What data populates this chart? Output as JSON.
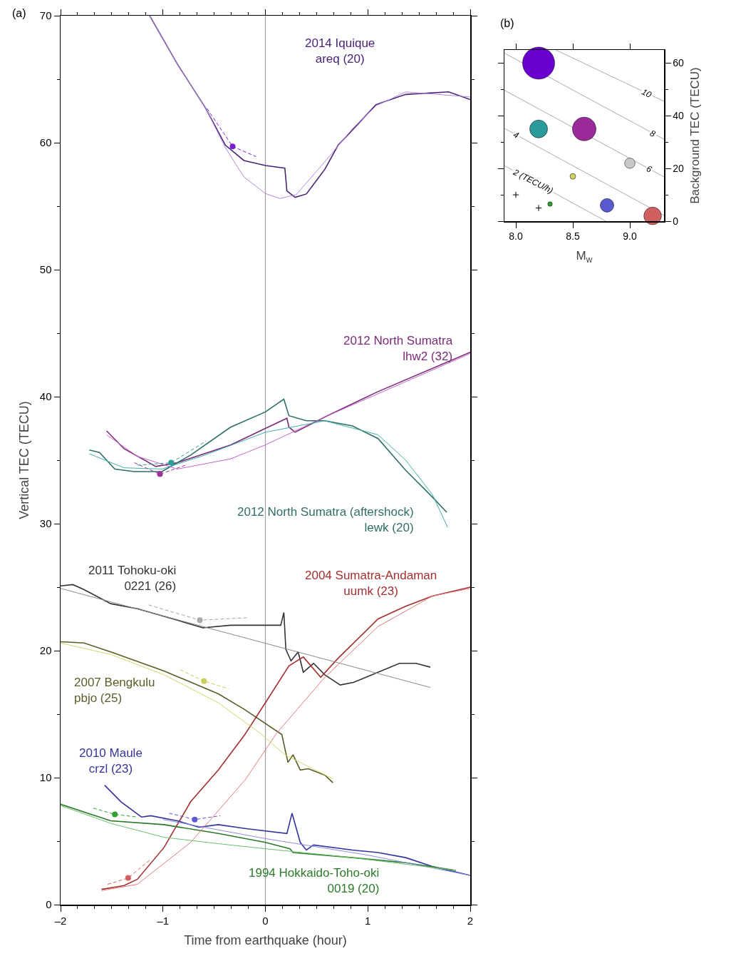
{
  "chart_data": [
    {
      "type": "line",
      "title": "(a)",
      "xlabel": "Time from earthquake (hour)",
      "ylabel": "Vertical TEC (TECU)",
      "xlim": [
        -2,
        2
      ],
      "ylim": [
        0,
        70
      ],
      "xticks": [
        {
          "value": -2,
          "label": "–2"
        },
        {
          "value": -1,
          "label": "–1"
        },
        0,
        1,
        2
      ],
      "yticks": [
        0,
        10,
        20,
        30,
        40,
        50,
        60,
        70
      ],
      "grid": false,
      "ref_lines": [
        {
          "axis": "x",
          "value": 0,
          "color": "#a0a0a0"
        }
      ],
      "series": [
        {
          "name": "2014 Iquique\nareq (20)",
          "color": "#4a2377",
          "x": [
            -1.13,
            -0.86,
            -0.59,
            -0.39,
            -0.21,
            0,
            0.19,
            0.21,
            0.29,
            0.4,
            0.58,
            0.71,
            0.85,
            1.08,
            1.37,
            1.79,
            2.0
          ],
          "values": [
            70,
            66.2,
            62.8,
            59.8,
            58.6,
            58.2,
            58.0,
            56.2,
            55.7,
            55.96,
            57.9,
            59.8,
            61.0,
            63.0,
            63.8,
            64.0,
            63.4
          ]
        },
        {
          "name": "2012 North Sumatra\nlhw2 (32)",
          "color": "#7a2a78",
          "x": [
            -1.55,
            -1.38,
            -1.07,
            -0.86,
            -0.34,
            0,
            0.21,
            0.23,
            0.29,
            0.58,
            1.1,
            2.0
          ],
          "values": [
            37.3,
            35.9,
            34.5,
            34.8,
            36.2,
            37.5,
            38.3,
            37.6,
            37.2,
            38.4,
            40.4,
            43.5
          ]
        },
        {
          "name": "2012 North Sumatra (aftershock)\nlewk (20)",
          "color": "#2f6e68",
          "x": [
            -1.72,
            -1.62,
            -1.47,
            -1.28,
            -1.01,
            -0.73,
            -0.34,
            0,
            0.18,
            0.23,
            0.4,
            0.58,
            0.85,
            1.1,
            1.37,
            1.63,
            1.77
          ],
          "values": [
            35.8,
            35.6,
            34.3,
            34.1,
            34.1,
            35.4,
            37.6,
            38.8,
            39.8,
            38.5,
            38.1,
            38.1,
            37.7,
            36.7,
            34.2,
            32.1,
            30.9
          ]
        },
        {
          "name": "2011 Tohoku-oki\n0221 (26)",
          "color": "#333333",
          "x": [
            -2.0,
            -1.88,
            -1.77,
            -1.51,
            -1.25,
            -0.86,
            -0.61,
            -0.34,
            0.15,
            0.18,
            0.2,
            0.25,
            0.32,
            0.37,
            0.47,
            0.58,
            0.73,
            0.86,
            1.1,
            1.31,
            1.47,
            1.61
          ],
          "values": [
            25.1,
            25.2,
            24.8,
            23.7,
            23.3,
            22.4,
            21.8,
            22.0,
            22.0,
            23.0,
            20.1,
            19.2,
            19.9,
            18.3,
            19.0,
            18.1,
            17.3,
            17.5,
            18.3,
            19.0,
            19.0,
            18.7
          ]
        },
        {
          "name": "2007 Bengkulu\npbjo (25)",
          "color": "#5c5c28",
          "x": [
            -2.0,
            -1.77,
            -1.51,
            -0.99,
            -0.46,
            -0.21,
            0.16,
            0.22,
            0.27,
            0.34,
            0.42,
            0.58,
            0.66
          ],
          "values": [
            20.7,
            20.6,
            19.9,
            18.4,
            16.6,
            15.4,
            13.4,
            11.2,
            11.8,
            10.6,
            10.7,
            10.2,
            9.6
          ]
        },
        {
          "name": "2004 Sumatra-Andaman\nuumk (23)",
          "color": "#a32f2f",
          "x": [
            -1.6,
            -1.38,
            -1.25,
            -0.99,
            -0.73,
            -0.46,
            -0.2,
            0,
            0.23,
            0.37,
            0.54,
            0.71,
            1.1,
            1.37,
            1.63,
            2.0
          ],
          "values": [
            1.2,
            1.5,
            2.0,
            4.5,
            8.1,
            10.6,
            13.4,
            15.9,
            18.8,
            19.5,
            17.9,
            19.4,
            22.5,
            23.5,
            24.3,
            25.0
          ]
        },
        {
          "name": "2010 Maule\ncrzl (23)",
          "color": "#34349c",
          "x": [
            -1.57,
            -1.41,
            -1.21,
            -1.12,
            -0.86,
            -0.65,
            -0.46,
            -0.2,
            0.21,
            0.26,
            0.34,
            0.4,
            0.47,
            0.85,
            1.1,
            1.37,
            1.63,
            2.0
          ],
          "values": [
            9.4,
            8.1,
            6.9,
            7.0,
            6.6,
            6.1,
            6.3,
            6.0,
            5.6,
            7.2,
            4.9,
            4.3,
            4.7,
            4.3,
            4.1,
            3.7,
            3.0,
            2.3
          ]
        },
        {
          "name": "1994 Hokkaido-Toho-oki\n0019 (20)",
          "color": "#2a7a2a",
          "x": [
            -2.0,
            -1.51,
            -0.99,
            -0.46,
            0,
            0.24,
            0.27,
            0.85,
            1.37,
            1.86
          ],
          "values": [
            7.9,
            6.6,
            6.3,
            5.6,
            4.9,
            4.4,
            4.1,
            3.7,
            3.3,
            2.7
          ]
        },
        {
          "color": "#b48ad8",
          "x": [
            -1.13,
            -0.86,
            -0.59,
            -0.39,
            -0.21,
            0,
            0.14,
            0.3,
            0.58,
            0.85,
            1.08,
            1.37,
            2.0
          ],
          "values": [
            70,
            66.2,
            62.8,
            59.6,
            57.3,
            56.0,
            55.6,
            55.9,
            58.5,
            61.1,
            62.9,
            64.0,
            63.6
          ]
        },
        {
          "color": "#c266c8",
          "x": [
            -1.55,
            -1.25,
            -0.86,
            -0.34,
            0,
            0.58,
            2.0
          ],
          "values": [
            37.0,
            35.3,
            34.3,
            35.1,
            36.2,
            38.4,
            43.4
          ]
        },
        {
          "color": "#3fb0aa",
          "x": [
            -1.72,
            -1.38,
            -1.01,
            -0.59,
            0,
            0.58,
            1.1,
            1.37,
            1.63,
            1.78
          ],
          "values": [
            35.5,
            34.4,
            34.3,
            35.4,
            37.2,
            38.1,
            37.0,
            35.0,
            32.3,
            29.7
          ]
        },
        {
          "color": "#8a8a8a",
          "x": [
            -2.0,
            1.61
          ],
          "values": [
            24.9,
            17.1
          ]
        },
        {
          "color": "#d4d46a",
          "x": [
            -2.0,
            -1.51,
            -0.99,
            -0.46,
            -0.05,
            0.19,
            0.66
          ],
          "values": [
            20.6,
            19.7,
            18.1,
            15.9,
            13.5,
            11.8,
            9.9
          ]
        },
        {
          "color": "#e07a7a",
          "x": [
            -1.6,
            -1.25,
            -0.73,
            -0.2,
            0.11,
            0.58,
            1.1,
            1.63,
            2.0
          ],
          "values": [
            1.1,
            1.6,
            4.9,
            9.8,
            13.5,
            17.9,
            21.9,
            24.3,
            24.9
          ]
        },
        {
          "color": "#8c8ce0",
          "x": [
            -1.0,
            0,
            1.0,
            2.0
          ],
          "values": [
            6.7,
            5.2,
            3.9,
            2.3
          ]
        },
        {
          "color": "#6cc06c",
          "x": [
            -2.0,
            -1.51,
            -0.99,
            -0.46,
            0,
            0.85,
            1.86
          ],
          "values": [
            7.8,
            6.4,
            5.3,
            4.8,
            4.4,
            3.7,
            2.7
          ]
        },
        {
          "color": "#7b1fd0",
          "line_style": "dashed",
          "x": [
            -0.57,
            -0.32,
            -0.09
          ],
          "values": [
            62.7,
            59.7,
            58.9
          ]
        },
        {
          "color": "#a0309a",
          "line_style": "dashed",
          "x": [
            -1.28,
            -1.03,
            -0.78
          ],
          "values": [
            34.8,
            33.9,
            34.6
          ]
        },
        {
          "color": "#2a9e98",
          "line_style": "dashed",
          "x": [
            -1.25,
            -0.92,
            -0.58
          ],
          "values": [
            34.6,
            34.8,
            36.5
          ]
        },
        {
          "color": "#a8a8a8",
          "line_style": "dashed",
          "x": [
            -1.14,
            -0.64,
            -0.16
          ],
          "values": [
            23.6,
            22.4,
            22.6
          ]
        },
        {
          "color": "#cccc55",
          "line_style": "dashed",
          "x": [
            -0.83,
            -0.6,
            -0.36
          ],
          "values": [
            18.5,
            17.6,
            17.0
          ]
        },
        {
          "color": "#d46060",
          "line_style": "dashed",
          "x": [
            -1.54,
            -1.34,
            -1.13
          ],
          "values": [
            1.6,
            2.1,
            3.5
          ]
        },
        {
          "color": "#5a5ad4",
          "line_style": "dashed",
          "x": [
            -0.94,
            -0.69,
            -0.44
          ],
          "values": [
            7.2,
            6.7,
            7.0
          ]
        },
        {
          "color": "#30a030",
          "line_style": "dashed",
          "x": [
            -1.68,
            -1.47,
            -1.25
          ],
          "values": [
            7.6,
            7.1,
            6.9
          ]
        },
        {
          "type": "scatter",
          "marker": "circle",
          "colors": [
            "#7b1fd0",
            "#a0309a",
            "#2a9e98",
            "#a8a8a8",
            "#cccc55",
            "#d46060",
            "#5a5ad4",
            "#30a030"
          ],
          "x": [
            -0.32,
            -1.03,
            -0.92,
            -0.64,
            -0.6,
            -1.34,
            -0.69,
            -1.47
          ],
          "values": [
            59.7,
            33.9,
            34.8,
            22.4,
            17.6,
            2.1,
            6.7,
            7.1
          ]
        }
      ]
    },
    {
      "type": "bubble",
      "title": "(b)",
      "xlabel": "M$_{w}$",
      "ylabel": "Background TEC (TECU)",
      "xlim": [
        7.9,
        9.3
      ],
      "ylim": [
        0,
        65
      ],
      "xticks": [
        {
          "value": 8,
          "label": "8.0"
        },
        8.5,
        {
          "value": 9,
          "label": "9.0"
        }
      ],
      "yticks": [
        0,
        20,
        40,
        60
      ],
      "grid": false,
      "annotations": [
        {
          "text": "2 (TECU/h)",
          "x": 8.15,
          "y": 15.2
        },
        {
          "text": "4",
          "x": 8.0,
          "y": 32.8
        },
        {
          "text": "6",
          "x": 9.17,
          "y": 19.9
        },
        {
          "text": "8",
          "x": 9.2,
          "y": 33.4
        },
        {
          "text": "10",
          "x": 9.15,
          "y": 48.6
        }
      ],
      "series": [
        {
          "type": "line",
          "color": "#aaaaaa",
          "x": [
            7.9,
            8.79
          ],
          "values": [
            21.1,
            0
          ]
        },
        {
          "type": "line",
          "color": "#aaaaaa",
          "x": [
            7.9,
            9.3
          ],
          "values": [
            35.2,
            2.2
          ]
        },
        {
          "type": "line",
          "color": "#aaaaaa",
          "x": [
            7.9,
            9.3
          ],
          "values": [
            49.7,
            16.8
          ]
        },
        {
          "type": "line",
          "color": "#aaaaaa",
          "x": [
            7.9,
            9.3
          ],
          "values": [
            63.8,
            31.1
          ]
        },
        {
          "type": "line",
          "color": "#aaaaaa",
          "x": [
            8.35,
            9.3
          ],
          "values": [
            65,
            45.5
          ]
        },
        {
          "x": [
            8.2,
            8.6,
            8.2,
            9.0,
            8.5,
            8.8,
            9.2,
            8.3
          ],
          "values": [
            60,
            35,
            35,
            22,
            17,
            6,
            2,
            6.5
          ],
          "sizes": [
            1,
            0.54,
            0.31,
            0.105,
            0.031,
            0.18,
            0.3,
            0.02
          ],
          "colors": [
            "#6a00d0",
            "#9a2a9a",
            "#2a9a9a",
            "#c8c8c8",
            "#d0d060",
            "#5a5ad0",
            "#d06060",
            "#30a030"
          ]
        },
        {
          "type": "scatter",
          "marker": "cross",
          "color": "#000000",
          "x": [
            8.0,
            8.2
          ],
          "values": [
            10,
            5
          ]
        }
      ]
    }
  ]
}
